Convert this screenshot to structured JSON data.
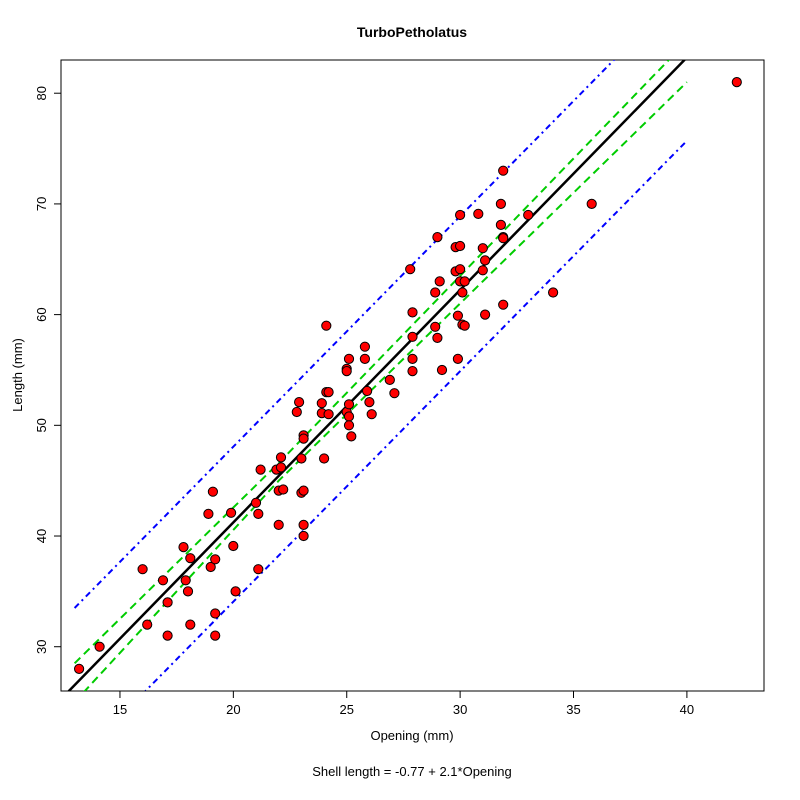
{
  "chart_data": {
    "type": "scatter",
    "title": "TurboPetholatus",
    "xlabel": "Opening (mm)",
    "ylabel": "Length (mm)",
    "caption": "Shell length = -0.77 + 2.1*Opening",
    "xlim": [
      12.4,
      43.4
    ],
    "ylim": [
      26.0,
      83.0
    ],
    "xticks": [
      15,
      20,
      25,
      30,
      35,
      40
    ],
    "yticks": [
      30,
      40,
      50,
      60,
      70,
      80
    ],
    "grid": false,
    "colors": {
      "points_fill": "#ff0000",
      "points_stroke": "#000000",
      "fit_line": "#000000",
      "confidence_band": "#00cc00",
      "prediction_band": "#0000ff"
    },
    "points": [
      [
        13.2,
        28.0
      ],
      [
        14.1,
        30.0
      ],
      [
        16.0,
        37.0
      ],
      [
        16.2,
        32.0
      ],
      [
        16.9,
        36.0
      ],
      [
        17.1,
        34.0
      ],
      [
        17.1,
        31.0
      ],
      [
        17.8,
        39.0
      ],
      [
        17.9,
        36.0
      ],
      [
        18.0,
        35.0
      ],
      [
        18.1,
        38.0
      ],
      [
        18.1,
        32.0
      ],
      [
        18.9,
        42.0
      ],
      [
        19.0,
        37.2
      ],
      [
        19.1,
        44.0
      ],
      [
        19.2,
        37.9
      ],
      [
        19.2,
        33.0
      ],
      [
        19.2,
        31.0
      ],
      [
        19.9,
        42.1
      ],
      [
        20.0,
        39.1
      ],
      [
        20.1,
        35.0
      ],
      [
        21.0,
        43.0
      ],
      [
        21.1,
        42.0
      ],
      [
        21.1,
        37.0
      ],
      [
        21.2,
        46.0
      ],
      [
        21.9,
        46.0
      ],
      [
        22.0,
        44.1
      ],
      [
        22.0,
        41.0
      ],
      [
        22.1,
        47.1
      ],
      [
        22.1,
        46.2
      ],
      [
        22.2,
        44.2
      ],
      [
        22.8,
        51.2
      ],
      [
        22.9,
        52.1
      ],
      [
        23.0,
        47.0
      ],
      [
        23.0,
        43.9
      ],
      [
        23.1,
        49.1
      ],
      [
        23.1,
        48.8
      ],
      [
        23.1,
        44.1
      ],
      [
        23.1,
        41.0
      ],
      [
        23.1,
        40.0
      ],
      [
        23.9,
        52.0
      ],
      [
        23.9,
        51.1
      ],
      [
        24.0,
        47.0
      ],
      [
        24.1,
        59.0
      ],
      [
        24.1,
        53.0
      ],
      [
        24.2,
        53.0
      ],
      [
        24.2,
        51.0
      ],
      [
        25.0,
        55.1
      ],
      [
        25.0,
        54.9
      ],
      [
        25.0,
        51.2
      ],
      [
        25.1,
        56.0
      ],
      [
        25.1,
        51.9
      ],
      [
        25.1,
        50.8
      ],
      [
        25.1,
        50.0
      ],
      [
        25.2,
        49.0
      ],
      [
        25.8,
        57.1
      ],
      [
        25.8,
        56.0
      ],
      [
        25.9,
        53.1
      ],
      [
        26.0,
        52.1
      ],
      [
        26.1,
        51.0
      ],
      [
        26.9,
        54.1
      ],
      [
        27.1,
        52.9
      ],
      [
        27.8,
        64.1
      ],
      [
        27.9,
        60.2
      ],
      [
        27.9,
        58.0
      ],
      [
        27.9,
        56.0
      ],
      [
        27.9,
        54.9
      ],
      [
        28.9,
        62.0
      ],
      [
        28.9,
        58.9
      ],
      [
        29.0,
        67.0
      ],
      [
        29.0,
        57.9
      ],
      [
        29.1,
        63.0
      ],
      [
        29.2,
        55.0
      ],
      [
        29.8,
        66.1
      ],
      [
        29.8,
        63.9
      ],
      [
        29.9,
        59.9
      ],
      [
        29.9,
        56.0
      ],
      [
        30.0,
        69.0
      ],
      [
        30.0,
        66.2
      ],
      [
        30.0,
        64.1
      ],
      [
        30.0,
        63.0
      ],
      [
        30.1,
        62.0
      ],
      [
        30.1,
        59.1
      ],
      [
        30.2,
        63.0
      ],
      [
        30.2,
        59.0
      ],
      [
        30.8,
        69.1
      ],
      [
        31.0,
        66.0
      ],
      [
        31.0,
        64.0
      ],
      [
        31.1,
        64.9
      ],
      [
        31.1,
        60.0
      ],
      [
        31.8,
        70.0
      ],
      [
        31.8,
        68.1
      ],
      [
        31.9,
        73.0
      ],
      [
        31.9,
        67.0
      ],
      [
        31.9,
        66.9
      ],
      [
        31.9,
        60.9
      ],
      [
        33.0,
        69.0
      ],
      [
        34.1,
        62.0
      ],
      [
        35.8,
        70.0
      ],
      [
        42.2,
        81.0
      ]
    ],
    "fit": {
      "intercept": -0.77,
      "slope": 2.1
    },
    "confidence_band": {
      "upper": [
        [
          13.0,
          28.5
        ],
        [
          22.0,
          46.6
        ],
        [
          30.0,
          63.5
        ],
        [
          40.0,
          84.7
        ]
      ],
      "lower": [
        [
          13.0,
          25.0
        ],
        [
          22.0,
          45.0
        ],
        [
          30.0,
          61.0
        ],
        [
          40.0,
          81.0
        ]
      ]
    },
    "prediction_band": {
      "upper": [
        [
          13.0,
          33.5
        ],
        [
          40.0,
          89.7
        ]
      ],
      "lower": [
        [
          13.0,
          19.5
        ],
        [
          40.0,
          75.7
        ]
      ]
    }
  }
}
